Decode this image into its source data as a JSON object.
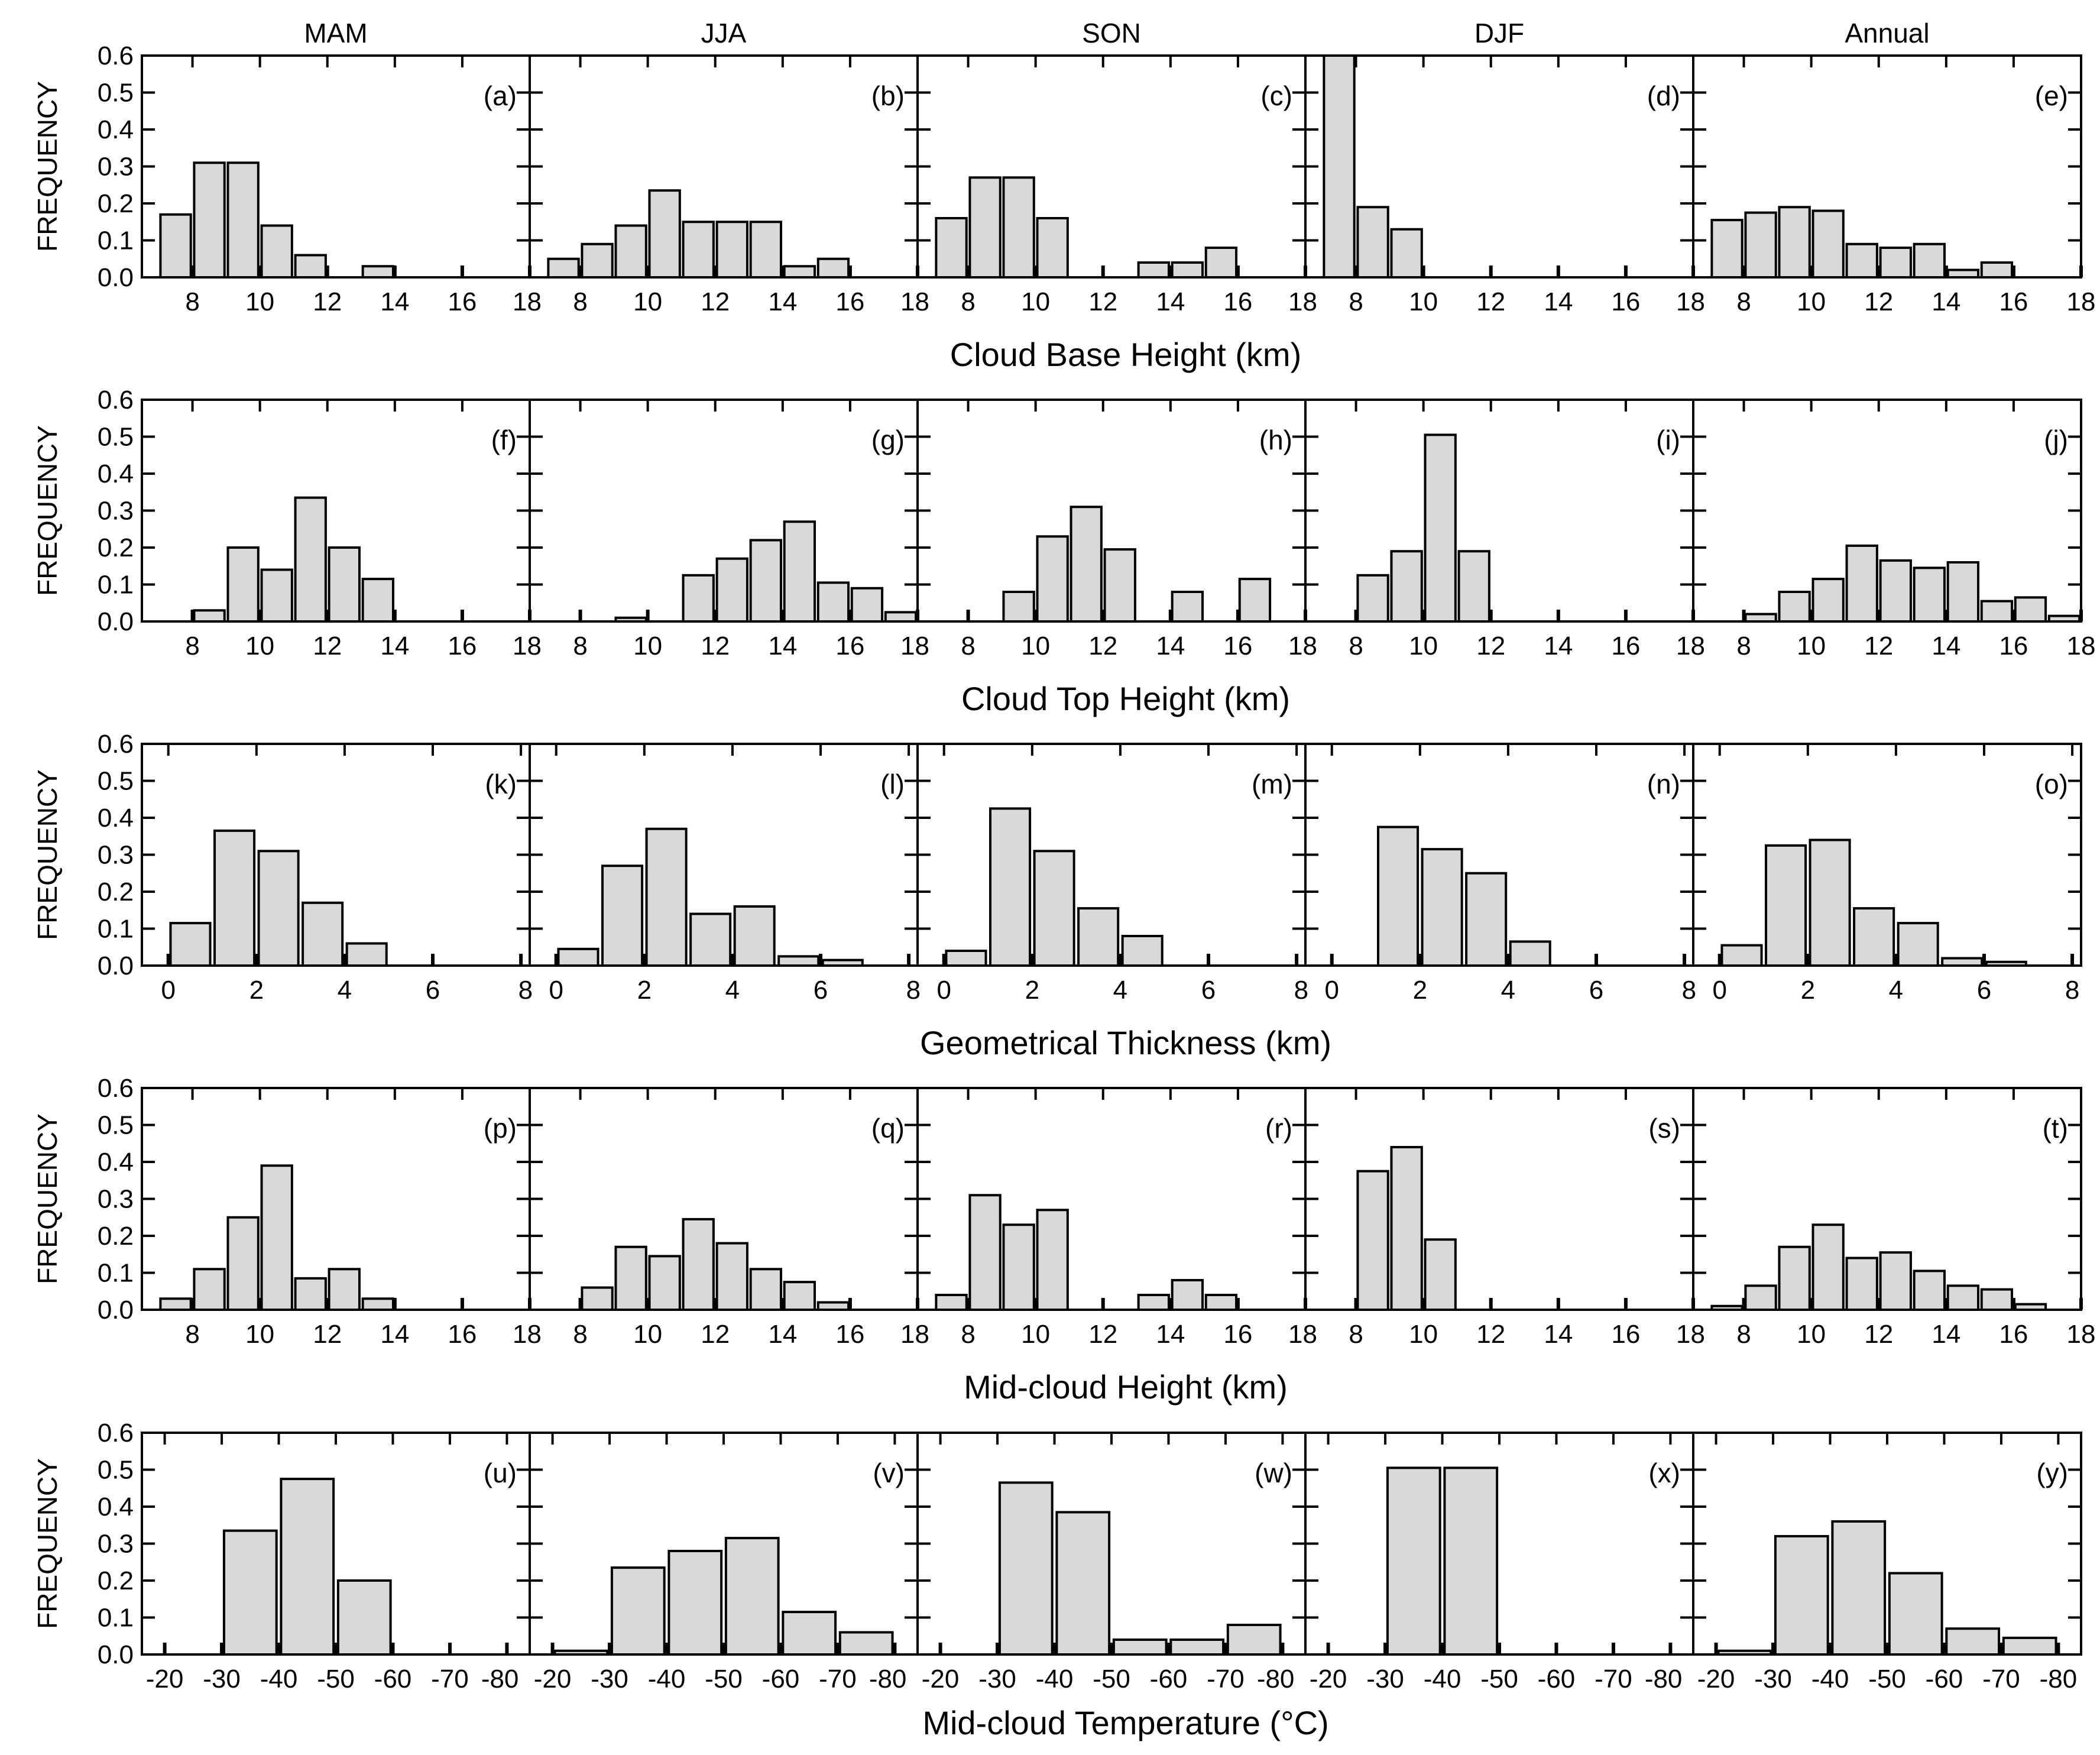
{
  "figure": {
    "columns": [
      "MAM",
      "JJA",
      "SON",
      "DJF",
      "Annual"
    ],
    "ylabel": "FREQUENCY",
    "yticks": [
      "0.0",
      "0.1",
      "0.2",
      "0.3",
      "0.4",
      "0.5",
      "0.6"
    ]
  },
  "chart_data": [
    {
      "type": "bar",
      "xlabel": "Cloud Base Height (km)",
      "ylabel": "FREQUENCY",
      "xlim": [
        6.5,
        18
      ],
      "ylim": [
        0,
        0.6
      ],
      "xticks": [
        "8",
        "10",
        "12",
        "14",
        "16",
        "18"
      ],
      "xtick_values": [
        8,
        10,
        12,
        14,
        16,
        18
      ],
      "bin_width": 0.9,
      "panels": [
        {
          "label": "(a)",
          "column": "MAM",
          "x": [
            7.5,
            8.5,
            9.5,
            10.5,
            11.5,
            12.5,
            13.5,
            14.5,
            15.5,
            16.5,
            17.5
          ],
          "values": [
            0.17,
            0.31,
            0.31,
            0.14,
            0.06,
            0,
            0.03,
            0,
            0,
            0,
            0
          ]
        },
        {
          "label": "(b)",
          "column": "JJA",
          "x": [
            7.5,
            8.5,
            9.5,
            10.5,
            11.5,
            12.5,
            13.5,
            14.5,
            15.5,
            16.5,
            17.5
          ],
          "values": [
            0.05,
            0.09,
            0.14,
            0.235,
            0.15,
            0.15,
            0.15,
            0.03,
            0.05,
            0,
            0
          ]
        },
        {
          "label": "(c)",
          "column": "SON",
          "x": [
            7.5,
            8.5,
            9.5,
            10.5,
            11.5,
            12.5,
            13.5,
            14.5,
            15.5,
            16.5,
            17.5
          ],
          "values": [
            0.16,
            0.27,
            0.27,
            0.16,
            0,
            0,
            0.04,
            0.04,
            0.08,
            0,
            0
          ]
        },
        {
          "label": "(d)",
          "column": "DJF",
          "x": [
            7.5,
            8.5,
            9.5,
            10.5,
            11.5,
            12.5,
            13.5,
            14.5,
            15.5,
            16.5,
            17.5
          ],
          "values": [
            0.6,
            0.19,
            0.13,
            0,
            0,
            0,
            0,
            0,
            0,
            0,
            0
          ]
        },
        {
          "label": "(e)",
          "column": "Annual",
          "x": [
            7.5,
            8.5,
            9.5,
            10.5,
            11.5,
            12.5,
            13.5,
            14.5,
            15.5,
            16.5,
            17.5
          ],
          "values": [
            0.155,
            0.175,
            0.19,
            0.18,
            0.09,
            0.08,
            0.09,
            0.02,
            0.04,
            0,
            0
          ]
        }
      ]
    },
    {
      "type": "bar",
      "xlabel": "Cloud Top Height (km)",
      "ylabel": "FREQUENCY",
      "xlim": [
        6.5,
        18
      ],
      "ylim": [
        0,
        0.6
      ],
      "xticks": [
        "8",
        "10",
        "12",
        "14",
        "16",
        "18"
      ],
      "xtick_values": [
        8,
        10,
        12,
        14,
        16,
        18
      ],
      "bin_width": 0.9,
      "panels": [
        {
          "label": "(f)",
          "column": "MAM",
          "x": [
            7.5,
            8.5,
            9.5,
            10.5,
            11.5,
            12.5,
            13.5,
            14.5,
            15.5,
            16.5,
            17.5
          ],
          "values": [
            0,
            0.03,
            0.2,
            0.14,
            0.335,
            0.2,
            0.115,
            0,
            0,
            0,
            0
          ]
        },
        {
          "label": "(g)",
          "column": "JJA",
          "x": [
            7.5,
            8.5,
            9.5,
            10.5,
            11.5,
            12.5,
            13.5,
            14.5,
            15.5,
            16.5,
            17.5
          ],
          "values": [
            0,
            0,
            0.01,
            0,
            0.125,
            0.17,
            0.22,
            0.27,
            0.105,
            0.09,
            0.025
          ]
        },
        {
          "label": "(h)",
          "column": "SON",
          "x": [
            7.5,
            8.5,
            9.5,
            10.5,
            11.5,
            12.5,
            13.5,
            14.5,
            15.5,
            16.5,
            17.5
          ],
          "values": [
            0,
            0,
            0.08,
            0.23,
            0.31,
            0.195,
            0,
            0.08,
            0,
            0.115,
            0
          ]
        },
        {
          "label": "(i)",
          "column": "DJF",
          "x": [
            7.5,
            8.5,
            9.5,
            10.5,
            11.5,
            12.5,
            13.5,
            14.5,
            15.5,
            16.5,
            17.5
          ],
          "values": [
            0,
            0.125,
            0.19,
            0.505,
            0.19,
            0,
            0,
            0,
            0,
            0,
            0
          ]
        },
        {
          "label": "(j)",
          "column": "Annual",
          "x": [
            7.5,
            8.5,
            9.5,
            10.5,
            11.5,
            12.5,
            13.5,
            14.5,
            15.5,
            16.5,
            17.5
          ],
          "values": [
            0,
            0.02,
            0.08,
            0.115,
            0.205,
            0.165,
            0.145,
            0.16,
            0.055,
            0.065,
            0.015
          ]
        }
      ]
    },
    {
      "type": "bar",
      "xlabel": "Geometrical Thickness (km)",
      "ylabel": "FREQUENCY",
      "xlim": [
        -0.6,
        8.2
      ],
      "ylim": [
        0,
        0.6
      ],
      "xticks": [
        "0",
        "2",
        "4",
        "6",
        "8"
      ],
      "xtick_values": [
        0,
        2,
        4,
        6,
        8
      ],
      "bin_width": 0.9,
      "panels": [
        {
          "label": "(k)",
          "column": "MAM",
          "x": [
            0.5,
            1.5,
            2.5,
            3.5,
            4.5,
            5.5,
            6.5
          ],
          "values": [
            0.115,
            0.365,
            0.31,
            0.17,
            0.06,
            0,
            0
          ]
        },
        {
          "label": "(l)",
          "column": "JJA",
          "x": [
            0.5,
            1.5,
            2.5,
            3.5,
            4.5,
            5.5,
            6.5
          ],
          "values": [
            0.045,
            0.27,
            0.37,
            0.14,
            0.16,
            0.025,
            0.015
          ]
        },
        {
          "label": "(m)",
          "column": "SON",
          "x": [
            0.5,
            1.5,
            2.5,
            3.5,
            4.5,
            5.5,
            6.5
          ],
          "values": [
            0.04,
            0.425,
            0.31,
            0.155,
            0.08,
            0,
            0
          ]
        },
        {
          "label": "(n)",
          "column": "DJF",
          "x": [
            0.5,
            1.5,
            2.5,
            3.5,
            4.5,
            5.5,
            6.5
          ],
          "values": [
            0,
            0.375,
            0.315,
            0.25,
            0.065,
            0,
            0
          ]
        },
        {
          "label": "(o)",
          "column": "Annual",
          "x": [
            0.5,
            1.5,
            2.5,
            3.5,
            4.5,
            5.5,
            6.5
          ],
          "values": [
            0.055,
            0.325,
            0.34,
            0.155,
            0.115,
            0.02,
            0.01
          ]
        }
      ]
    },
    {
      "type": "bar",
      "xlabel": "Mid-cloud Height (km)",
      "ylabel": "FREQUENCY",
      "xlim": [
        6.5,
        18
      ],
      "ylim": [
        0,
        0.6
      ],
      "xticks": [
        "8",
        "10",
        "12",
        "14",
        "16",
        "18"
      ],
      "xtick_values": [
        8,
        10,
        12,
        14,
        16,
        18
      ],
      "bin_width": 0.9,
      "panels": [
        {
          "label": "(p)",
          "column": "MAM",
          "x": [
            7.5,
            8.5,
            9.5,
            10.5,
            11.5,
            12.5,
            13.5,
            14.5,
            15.5,
            16.5,
            17.5
          ],
          "values": [
            0.03,
            0.11,
            0.25,
            0.39,
            0.085,
            0.11,
            0.03,
            0,
            0,
            0,
            0
          ]
        },
        {
          "label": "(q)",
          "column": "JJA",
          "x": [
            7.5,
            8.5,
            9.5,
            10.5,
            11.5,
            12.5,
            13.5,
            14.5,
            15.5,
            16.5,
            17.5
          ],
          "values": [
            0,
            0.06,
            0.17,
            0.145,
            0.245,
            0.18,
            0.11,
            0.075,
            0.02,
            0,
            0
          ]
        },
        {
          "label": "(r)",
          "column": "SON",
          "x": [
            7.5,
            8.5,
            9.5,
            10.5,
            11.5,
            12.5,
            13.5,
            14.5,
            15.5,
            16.5,
            17.5
          ],
          "values": [
            0.04,
            0.31,
            0.23,
            0.27,
            0,
            0,
            0.04,
            0.08,
            0.04,
            0,
            0
          ]
        },
        {
          "label": "(s)",
          "column": "DJF",
          "x": [
            7.5,
            8.5,
            9.5,
            10.5,
            11.5,
            12.5,
            13.5,
            14.5,
            15.5,
            16.5,
            17.5
          ],
          "values": [
            0,
            0.375,
            0.44,
            0.19,
            0,
            0,
            0,
            0,
            0,
            0,
            0
          ]
        },
        {
          "label": "(t)",
          "column": "Annual",
          "x": [
            7.5,
            8.5,
            9.5,
            10.5,
            11.5,
            12.5,
            13.5,
            14.5,
            15.5,
            16.5,
            17.5
          ],
          "values": [
            0.01,
            0.065,
            0.17,
            0.23,
            0.14,
            0.155,
            0.105,
            0.065,
            0.055,
            0.015,
            0
          ]
        }
      ]
    },
    {
      "type": "bar",
      "xlabel": "Mid-cloud Temperature (°C)",
      "ylabel": "FREQUENCY",
      "xlim": [
        -16,
        -84
      ],
      "ylim": [
        0,
        0.6
      ],
      "xticks": [
        "-20",
        "-30",
        "-40",
        "-50",
        "-60",
        "-70",
        "-80"
      ],
      "xtick_values": [
        -20,
        -30,
        -40,
        -50,
        -60,
        -70,
        -80
      ],
      "bin_width": 9.2,
      "panels": [
        {
          "label": "(u)",
          "column": "MAM",
          "x": [
            -25,
            -35,
            -45,
            -55,
            -65,
            -75
          ],
          "values": [
            0,
            0.335,
            0.475,
            0.2,
            0,
            0
          ]
        },
        {
          "label": "(v)",
          "column": "JJA",
          "x": [
            -25,
            -35,
            -45,
            -55,
            -65,
            -75
          ],
          "values": [
            0.01,
            0.235,
            0.28,
            0.315,
            0.115,
            0.06
          ]
        },
        {
          "label": "(w)",
          "column": "SON",
          "x": [
            -25,
            -35,
            -45,
            -55,
            -65,
            -75
          ],
          "values": [
            0,
            0.465,
            0.385,
            0.04,
            0.04,
            0.08
          ]
        },
        {
          "label": "(x)",
          "column": "DJF",
          "x": [
            -25,
            -35,
            -45,
            -55,
            -65,
            -75
          ],
          "values": [
            0,
            0.505,
            0.505,
            0,
            0,
            0
          ]
        },
        {
          "label": "(y)",
          "column": "Annual",
          "x": [
            -25,
            -35,
            -45,
            -55,
            -65,
            -75
          ],
          "values": [
            0.01,
            0.32,
            0.36,
            0.22,
            0.07,
            0.045
          ]
        }
      ]
    }
  ],
  "colors": {
    "bar_fill": "#d9d9d9",
    "bar_stroke": "#000000",
    "axis": "#000000"
  }
}
